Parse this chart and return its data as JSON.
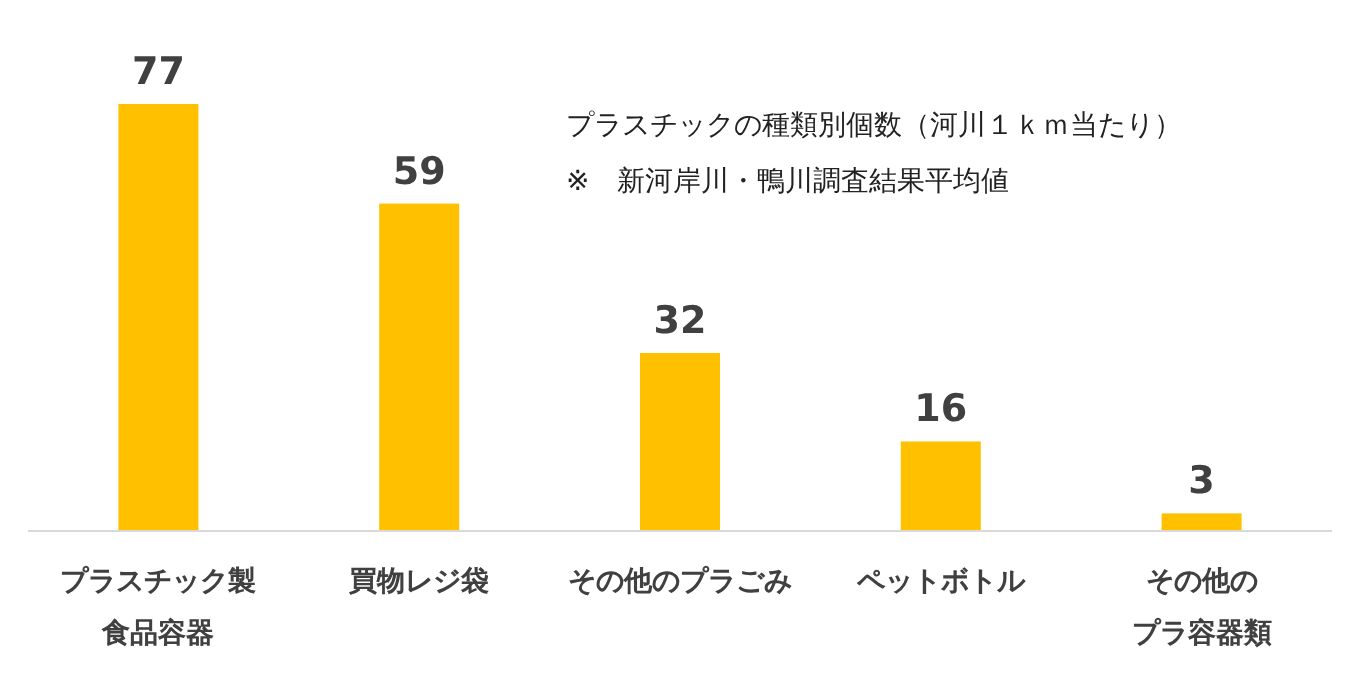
{
  "chart_data": {
    "type": "bar",
    "title": "プラスチックの種類別個数（河川１ｋｍ当たり）",
    "annotations": [
      "※　新河岸川・鴨川調査結果平均値"
    ],
    "categories": [
      "プラスチック製食品容器",
      "買物レジ袋",
      "その他のプラごみ",
      "ペットボトル",
      "その他のプラ容器類"
    ],
    "values": [
      77,
      59,
      32,
      16,
      3
    ],
    "color": "#ffc000",
    "data_labels": true,
    "grid": false,
    "legend": false
  }
}
